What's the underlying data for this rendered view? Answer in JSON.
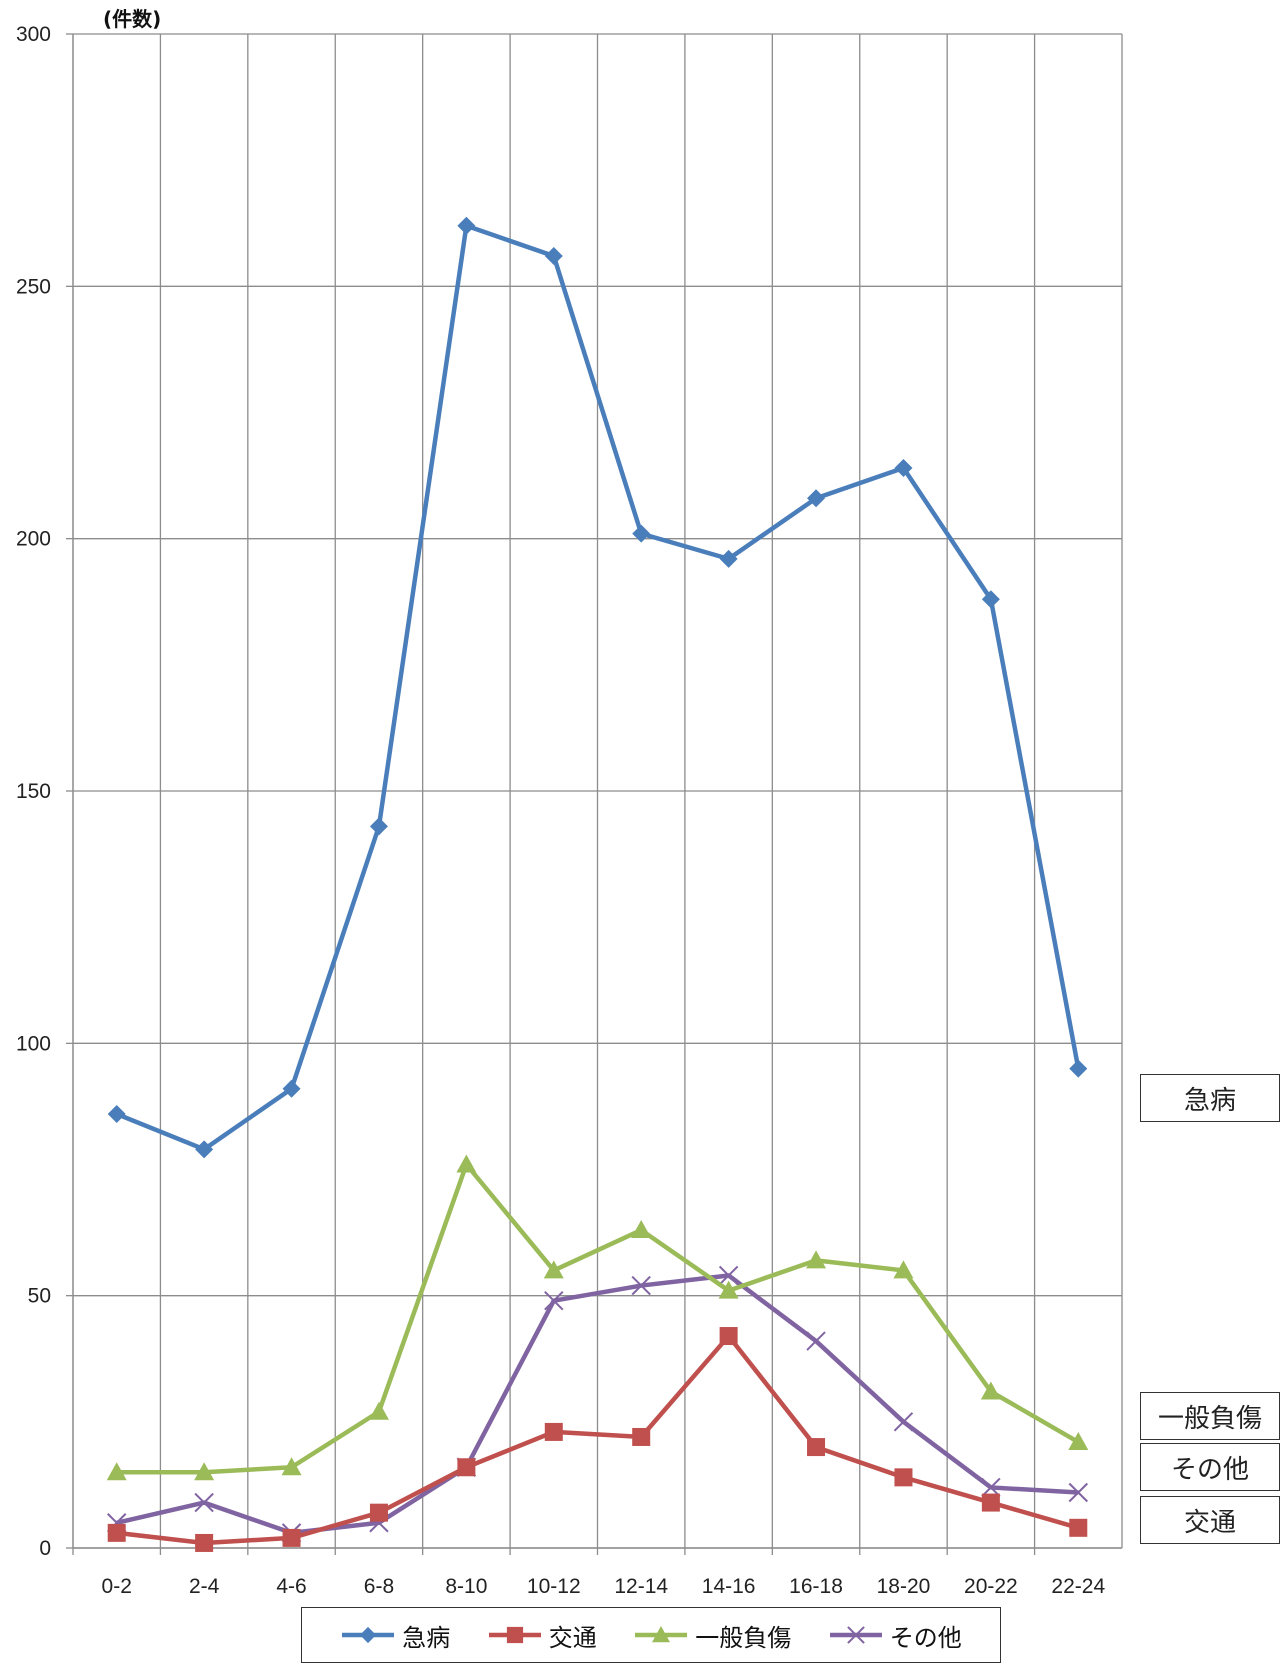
{
  "chart_data": {
    "type": "line",
    "ylabel": "(件数)",
    "ylim": [
      0,
      300
    ],
    "yticks": [
      0,
      50,
      100,
      150,
      200,
      250,
      300
    ],
    "categories": [
      "0-2",
      "2-4",
      "4-6",
      "6-8",
      "8-10",
      "10-12",
      "12-14",
      "14-16",
      "16-18",
      "18-20",
      "20-22",
      "22-24"
    ],
    "grid": true,
    "legend_placement": "bottom",
    "series": [
      {
        "name": "急病",
        "color": "#4a7ebb",
        "marker": "diamond",
        "values": [
          86,
          79,
          91,
          143,
          262,
          256,
          201,
          196,
          208,
          214,
          188,
          95
        ]
      },
      {
        "name": "交通",
        "color": "#c0504d",
        "marker": "square",
        "values": [
          3,
          1,
          2,
          7,
          16,
          23,
          22,
          42,
          20,
          14,
          9,
          4
        ]
      },
      {
        "name": "一般負傷",
        "color": "#9bbb59",
        "marker": "triangle",
        "values": [
          15,
          15,
          16,
          27,
          76,
          55,
          63,
          51,
          57,
          55,
          31,
          21
        ]
      },
      {
        "name": "その他",
        "color": "#8064a2",
        "marker": "x",
        "values": [
          5,
          9,
          3,
          5,
          16,
          49,
          52,
          54,
          41,
          25,
          12,
          11
        ]
      }
    ],
    "side_labels": [
      "急病",
      "一般負傷",
      "その他",
      "交通"
    ]
  }
}
